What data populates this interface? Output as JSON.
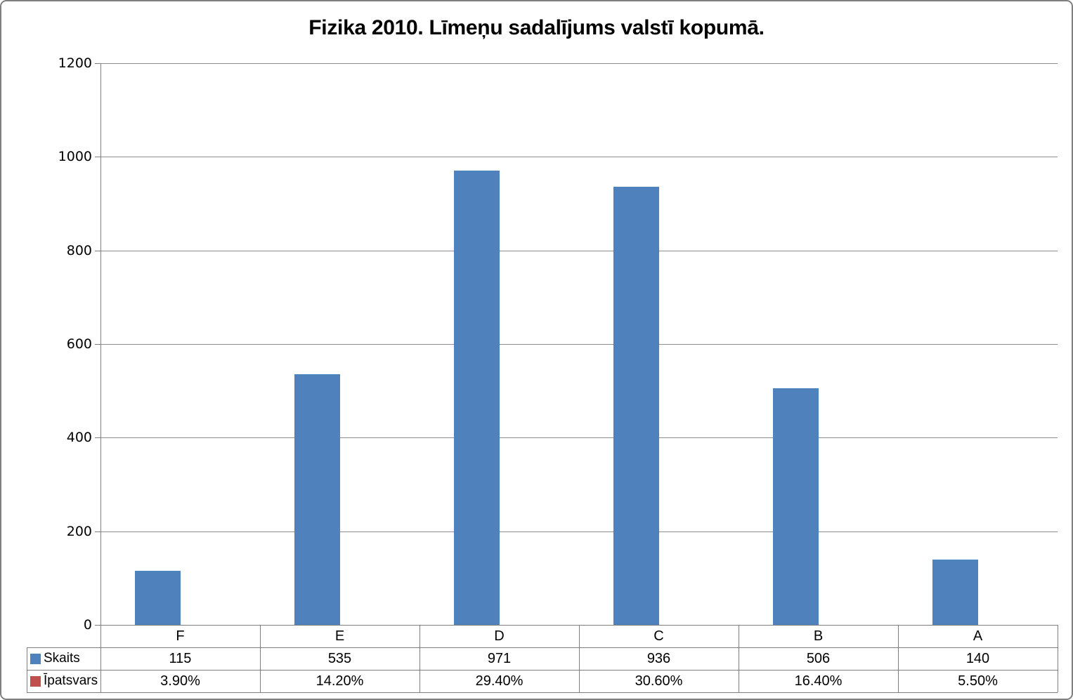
{
  "frame": {
    "background": "#ffffff",
    "border_color": "#7f7f7f"
  },
  "chart_data": {
    "type": "bar",
    "title": "Fizika 2010. Līmeņu sadalījums valstī kopumā.",
    "categories": [
      "F",
      "E",
      "D",
      "C",
      "B",
      "A"
    ],
    "series": [
      {
        "name": "Skaits",
        "color": "#4F81BD",
        "values": [
          115,
          535,
          971,
          936,
          506,
          140
        ],
        "labels": [
          "115",
          "535",
          "971",
          "936",
          "506",
          "140"
        ]
      },
      {
        "name": "Īpatsvars",
        "color": "#C0504D",
        "values": [
          0.039,
          0.142,
          0.294,
          0.306,
          0.164,
          0.055
        ],
        "labels": [
          "3.90%",
          "14.20%",
          "29.40%",
          "30.60%",
          "16.40%",
          "5.50%"
        ]
      }
    ],
    "xlabel": "",
    "ylabel": "",
    "ylim": [
      0,
      1200
    ],
    "ytick_step": 200,
    "yticks": [
      0,
      200,
      400,
      600,
      800,
      1000,
      1200
    ],
    "grid": true,
    "gridline_color": "#8c8c8c",
    "axis_color": "#7f7f7f",
    "text_color": "#000000",
    "legend_position": "data-table-left"
  }
}
